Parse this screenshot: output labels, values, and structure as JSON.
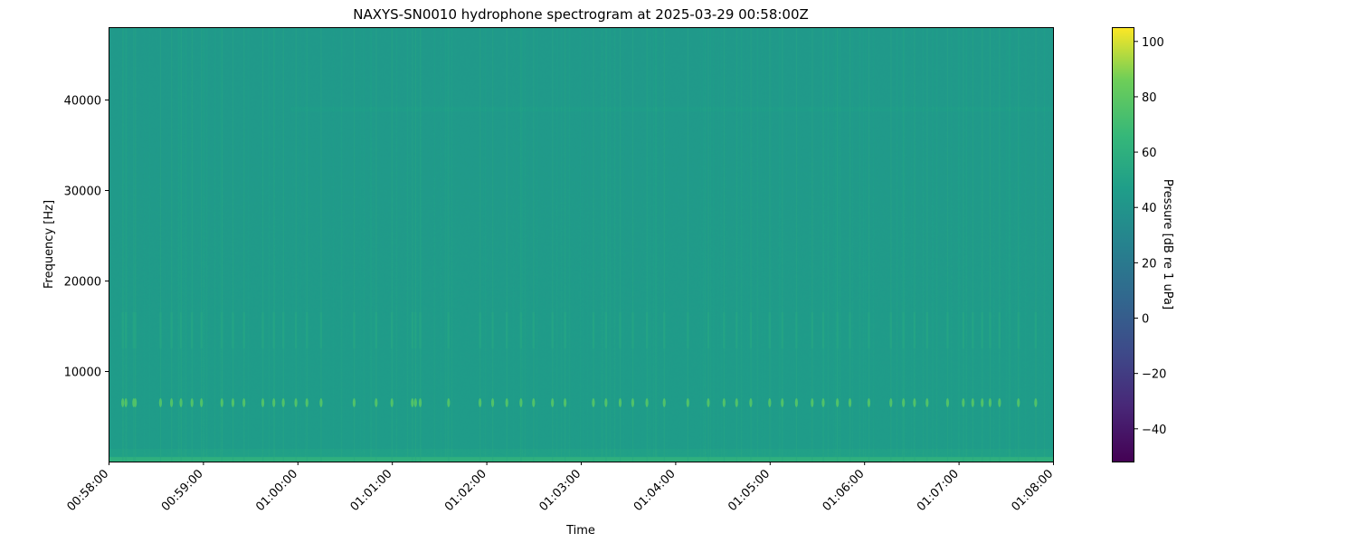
{
  "chart_data": {
    "type": "heatmap",
    "title": "NAXYS-SN0010 hydrophone spectrogram at 2025-03-29 00:58:00Z",
    "xlabel": "Time",
    "ylabel": "Frequency [Hz]",
    "x_ticks": [
      "00:58:00",
      "00:59:00",
      "01:00:00",
      "01:01:00",
      "01:02:00",
      "01:03:00",
      "01:04:00",
      "01:05:00",
      "01:06:00",
      "01:07:00",
      "01:08:00"
    ],
    "xlim": [
      "00:58:00",
      "01:08:00"
    ],
    "y_ticks": [
      10000,
      20000,
      30000,
      40000
    ],
    "ylim": [
      0,
      48000
    ],
    "colorbar": {
      "label": "Pressure [dB re 1 uPa]",
      "colormap": "viridis",
      "range": [
        -52,
        105
      ],
      "ticks": [
        -40,
        -20,
        0,
        20,
        40,
        60,
        80,
        100
      ]
    },
    "background_level_db": 45,
    "low_frequency_level_db": 60,
    "tonal_band_hz": 6500,
    "harmonic_band_hz": [
      12500,
      16500
    ],
    "faint_line_hz": 39000,
    "pulse_level_db": 75,
    "pulse_times": [
      "00:58:09",
      "00:58:11",
      "00:58:16",
      "00:58:17",
      "00:58:33",
      "00:58:40",
      "00:58:46",
      "00:58:53",
      "00:58:59",
      "00:59:12",
      "00:59:19",
      "00:59:26",
      "00:59:38",
      "00:59:45",
      "00:59:51",
      "00:59:59",
      "01:00:06",
      "01:00:15",
      "01:00:36",
      "01:00:50",
      "01:01:00",
      "01:01:13",
      "01:01:15",
      "01:01:18",
      "01:01:36",
      "01:01:56",
      "01:02:04",
      "01:02:13",
      "01:02:22",
      "01:02:30",
      "01:02:42",
      "01:02:50",
      "01:03:08",
      "01:03:16",
      "01:03:25",
      "01:03:33",
      "01:03:42",
      "01:03:53",
      "01:04:08",
      "01:04:21",
      "01:04:31",
      "01:04:39",
      "01:04:48",
      "01:05:00",
      "01:05:08",
      "01:05:17",
      "01:05:27",
      "01:05:34",
      "01:05:43",
      "01:05:51",
      "01:06:03",
      "01:06:17",
      "01:06:25",
      "01:06:32",
      "01:06:40",
      "01:06:53",
      "01:07:03",
      "01:07:09",
      "01:07:15",
      "01:07:20",
      "01:07:26",
      "01:07:38",
      "01:07:49"
    ]
  }
}
